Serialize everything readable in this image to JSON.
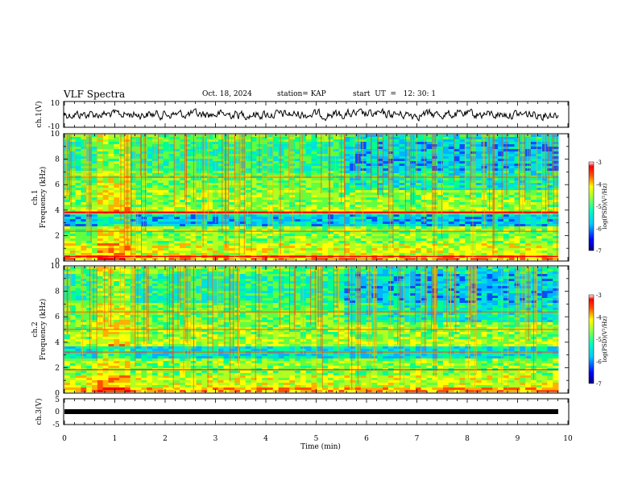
{
  "header": {
    "title": "VLF Spectra",
    "date": "Oct. 18, 2024",
    "station": "station= KAP",
    "start": "start  UT  =   12: 30: 1"
  },
  "chart_data": [
    {
      "type": "line",
      "title": "",
      "ylabel": "ch.1(V)",
      "xlim": [
        0,
        10
      ],
      "ylim": [
        -10,
        10
      ],
      "yticks": [
        "10",
        "-10"
      ],
      "series": [
        {
          "values_description": "noisy waveform, roughly -5 to 5 V over 0-9.8 min"
        }
      ]
    },
    {
      "type": "heatmap",
      "ylabel": "ch.1 Frequency  (kHz)",
      "xlim": [
        0,
        10
      ],
      "ylim": [
        0,
        10
      ],
      "yticks": [
        "0",
        "2",
        "4",
        "6",
        "8",
        "10"
      ],
      "colorbar": {
        "label": "log(PSD)(V²/Hz)",
        "range": [
          -7,
          -3
        ],
        "ticks": [
          "-3",
          "-4",
          "-5",
          "-6",
          "-7"
        ]
      }
    },
    {
      "type": "heatmap",
      "ylabel": "ch.2 Frequency  (kHz)",
      "xlim": [
        0,
        10
      ],
      "ylim": [
        0,
        10
      ],
      "yticks": [
        "0",
        "2",
        "4",
        "6",
        "8",
        "10"
      ],
      "colorbar": {
        "label": "log(PSD)(V²/Hz)",
        "range": [
          -7,
          -3
        ],
        "ticks": [
          "-3",
          "-4",
          "-5",
          "-6",
          "-7"
        ]
      }
    },
    {
      "type": "line",
      "ylabel": "ch.3(V)",
      "xlabel": "Time  (min)",
      "xlim": [
        0,
        10
      ],
      "ylim": [
        -5,
        5
      ],
      "yticks": [
        "5",
        "0",
        "-5"
      ],
      "xticks": [
        "0",
        "1",
        "2",
        "3",
        "4",
        "5",
        "6",
        "7",
        "8",
        "9",
        "10"
      ],
      "series": [
        {
          "values": [
            -1,
            -1
          ],
          "x": [
            0,
            9.8
          ]
        }
      ]
    }
  ]
}
